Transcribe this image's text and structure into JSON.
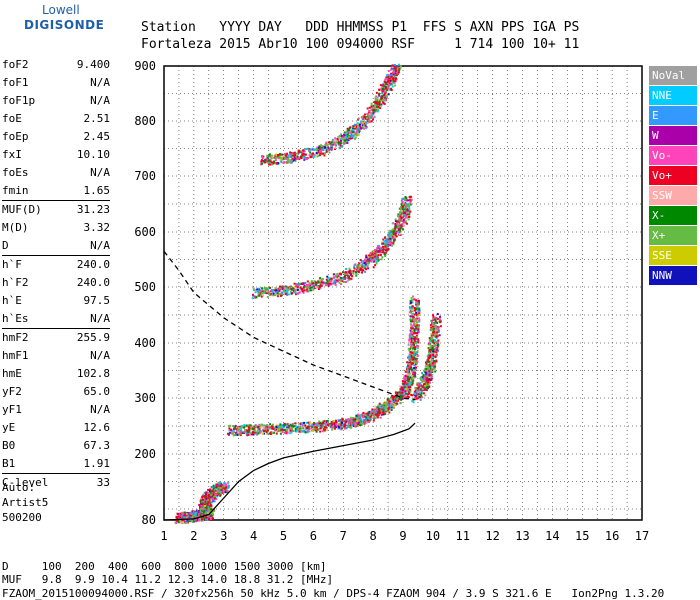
{
  "logo": {
    "line1": "Lowell",
    "line2": "DIGISONDE"
  },
  "header": {
    "line1": "Station   YYYY DAY   DDD HHMMSS P1  FFS S AXN PPS IGA PS",
    "line2": "Fortaleza 2015 Abr10 100 094000 RSF     1 714 100 10+ 11"
  },
  "params_groups": [
    [
      [
        "foF2",
        "9.400"
      ],
      [
        "foF1",
        "N/A"
      ],
      [
        "foF1p",
        "N/A"
      ],
      [
        "foE",
        "2.51"
      ],
      [
        "foEp",
        "2.45"
      ],
      [
        "fxI",
        "10.10"
      ],
      [
        "foEs",
        "N/A"
      ],
      [
        "fmin",
        "1.65"
      ]
    ],
    [
      [
        "MUF(D)",
        "31.23"
      ],
      [
        "M(D)",
        "3.32"
      ],
      [
        "D",
        "N/A"
      ]
    ],
    [
      [
        "h`F",
        "240.0"
      ],
      [
        "h`F2",
        "240.0"
      ],
      [
        "h`E",
        "97.5"
      ],
      [
        "h`Es",
        "N/A"
      ]
    ],
    [
      [
        "hmF2",
        "255.9"
      ],
      [
        "hmF1",
        "N/A"
      ],
      [
        "hmE",
        "102.8"
      ],
      [
        "yF2",
        "65.0"
      ],
      [
        "yF1",
        "N/A"
      ],
      [
        "yE",
        "12.6"
      ],
      [
        "B0",
        "67.3"
      ],
      [
        "B1",
        "1.91"
      ]
    ],
    [
      [
        "C-level",
        "33"
      ]
    ]
  ],
  "auto": {
    "line1": "Auto:",
    "line2": "Artist5",
    "line3": "500200"
  },
  "legend": [
    {
      "label": "NoVal",
      "color": "#a0a0a0"
    },
    {
      "label": "NNE",
      "color": "#00ccff"
    },
    {
      "label": "E",
      "color": "#3399ff"
    },
    {
      "label": "W",
      "color": "#aa00aa"
    },
    {
      "label": "Vo-",
      "color": "#ff44bb"
    },
    {
      "label": "Vo+",
      "color": "#ee0022"
    },
    {
      "label": "SSW",
      "color": "#ffaaaa"
    },
    {
      "label": "X-",
      "color": "#008800"
    },
    {
      "label": "X+",
      "color": "#66bb44"
    },
    {
      "label": "SSE",
      "color": "#cccc00"
    },
    {
      "label": "NNW",
      "color": "#1111bb"
    }
  ],
  "footer": {
    "line1": "D     100  200  400  600  800 1000 1500 3000 [km]",
    "line2": "MUF   9.8  9.9 10.4 11.2 12.3 14.0 18.8 31.2 [MHz]",
    "line3": "FZAOM_2015100094000.RSF / 320fx256h 50 kHz 5.0 km / DPS-4 FZAOM 904 / 3.9 S 321.6 E   Ion2Png 1.3.20"
  },
  "chart_data": {
    "type": "scatter",
    "xlim": [
      1,
      17
    ],
    "ylim": [
      80,
      900
    ],
    "x_ticks": [
      "1",
      "2",
      "3",
      "4",
      "5",
      "6",
      "7",
      "8",
      "9",
      "10",
      "11",
      "12",
      "13",
      "14",
      "15",
      "16",
      "17"
    ],
    "y_ticks": [
      "80",
      "200",
      "300",
      "400",
      "500",
      "600",
      "700",
      "800",
      "900"
    ],
    "grid": true,
    "traces": [
      {
        "name": "e-layer",
        "points": [
          [
            1.5,
            84
          ],
          [
            1.7,
            86
          ],
          [
            2.0,
            88
          ],
          [
            2.2,
            90
          ],
          [
            2.5,
            93
          ],
          [
            2.3,
            112
          ],
          [
            2.5,
            124
          ],
          [
            2.8,
            138
          ],
          [
            3.0,
            142
          ]
        ]
      },
      {
        "name": "f-trace-1",
        "points": [
          [
            3.2,
            243
          ],
          [
            4,
            245
          ],
          [
            5,
            247
          ],
          [
            6,
            250
          ],
          [
            7,
            255
          ],
          [
            7.5,
            262
          ],
          [
            8,
            272
          ],
          [
            8.5,
            290
          ],
          [
            9.0,
            310
          ],
          [
            9.2,
            340
          ],
          [
            9.3,
            380
          ],
          [
            9.35,
            430
          ],
          [
            9.35,
            480
          ]
        ]
      },
      {
        "name": "f-trace-2",
        "points": [
          [
            4.0,
            490
          ],
          [
            5,
            495
          ],
          [
            6,
            505
          ],
          [
            7,
            520
          ],
          [
            7.8,
            545
          ],
          [
            8.3,
            570
          ],
          [
            8.7,
            600
          ],
          [
            9.0,
            630
          ],
          [
            9.1,
            660
          ]
        ]
      },
      {
        "name": "f-trace-3",
        "points": [
          [
            4.3,
            730
          ],
          [
            5.2,
            735
          ],
          [
            6.2,
            748
          ],
          [
            7.0,
            768
          ],
          [
            7.6,
            795
          ],
          [
            8.1,
            830
          ],
          [
            8.5,
            870
          ],
          [
            8.8,
            900
          ]
        ]
      },
      {
        "name": "x-trace",
        "points": [
          [
            9.4,
            300
          ],
          [
            9.7,
            330
          ],
          [
            9.9,
            360
          ],
          [
            10.0,
            400
          ],
          [
            10.1,
            450
          ]
        ]
      }
    ],
    "profile_solid": [
      [
        1.0,
        80
      ],
      [
        2.0,
        82
      ],
      [
        2.5,
        90
      ],
      [
        3.0,
        120
      ],
      [
        3.5,
        150
      ],
      [
        4.0,
        170
      ],
      [
        4.5,
        183
      ],
      [
        5.0,
        193
      ],
      [
        6.0,
        205
      ],
      [
        7.0,
        215
      ],
      [
        8.0,
        225
      ],
      [
        8.7,
        235
      ],
      [
        9.2,
        245
      ],
      [
        9.4,
        255
      ]
    ],
    "profile_dashed": [
      [
        1.0,
        565
      ],
      [
        1.5,
        530
      ],
      [
        2.0,
        490
      ],
      [
        3.0,
        445
      ],
      [
        4.0,
        410
      ],
      [
        5.0,
        385
      ],
      [
        6.0,
        360
      ],
      [
        7.0,
        340
      ],
      [
        8.0,
        320
      ],
      [
        8.5,
        310
      ],
      [
        9.0,
        300
      ],
      [
        9.4,
        297
      ]
    ]
  }
}
